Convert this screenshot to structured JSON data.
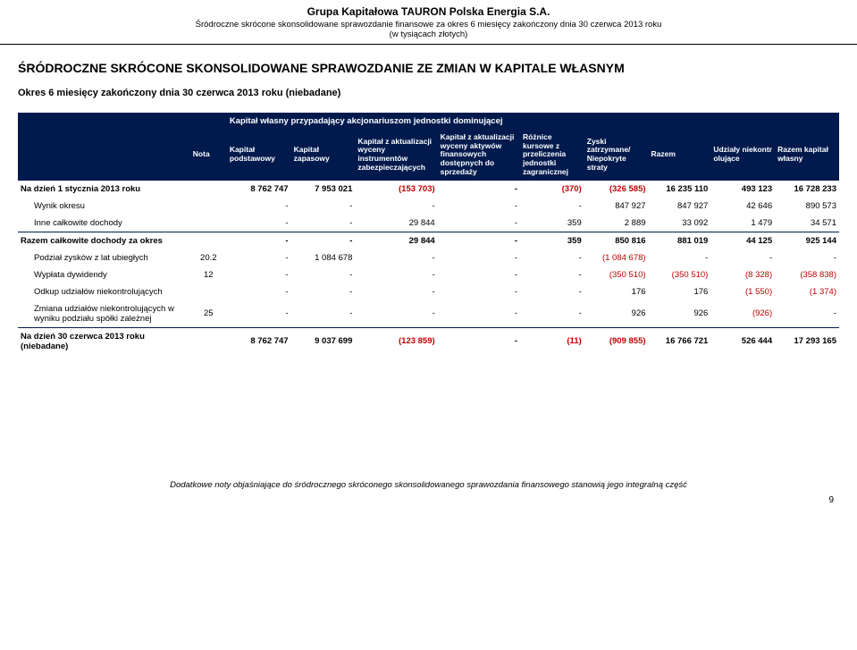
{
  "header": {
    "company": "Grupa Kapitałowa TAURON Polska Energia S.A.",
    "sub1": "Śródroczne skrócone skonsolidowane sprawozdanie finansowe za okres 6 miesięcy zakończony dnia 30 czerwca 2013 roku",
    "sub2": "(w tysiącach złotych)"
  },
  "title": "ŚRÓDROCZNE SKRÓCONE SKONSOLIDOWANE SPRAWOZDANIE ZE ZMIAN W KAPITALE WŁASNYM",
  "period": "Okres 6 miesięcy zakończony dnia 30 czerwca 2013 roku (niebadane)",
  "band": "Kapitał własny przypadający akcjonariuszom jednostki dominującej",
  "columns": {
    "nota": "Nota",
    "c1": "Kapitał podstawowy",
    "c2": "Kapitał zapasowy",
    "c3": "Kapitał z aktualizacji wyceny instrumentów zabezpieczających",
    "c4": "Kapitał z aktualizacji wyceny aktywów finansowych dostępnych do sprzedaży",
    "c5": "Różnice kursowe z przeliczenia jednostki zagranicznej",
    "c6": "Zyski zatrzymane/ Niepokryte straty",
    "c7": "Razem",
    "c8": "Udziały niekontr olujące",
    "c9": "Razem kapitał własny"
  },
  "rows": [
    {
      "label": "Na dzień 1 stycznia 2013 roku",
      "nota": "",
      "bold": true,
      "sep": false,
      "indent": 0,
      "v": [
        "8 762 747",
        "7 953 021",
        "(153 703)",
        "-",
        "(370)",
        "(326 585)",
        "16 235 110",
        "493 123",
        "16 728 233"
      ]
    },
    {
      "label": "Wynik okresu",
      "nota": "",
      "bold": false,
      "sep": false,
      "indent": 1,
      "v": [
        "-",
        "-",
        "-",
        "-",
        "-",
        "847 927",
        "847 927",
        "42 646",
        "890 573"
      ]
    },
    {
      "label": "Inne całkowite dochody",
      "nota": "",
      "bold": false,
      "sep": false,
      "indent": 1,
      "v": [
        "-",
        "-",
        "29 844",
        "-",
        "359",
        "2 889",
        "33 092",
        "1 479",
        "34 571"
      ]
    },
    {
      "label": "Razem całkowite dochody za okres",
      "nota": "",
      "bold": true,
      "sep": true,
      "indent": 0,
      "v": [
        "-",
        "-",
        "29 844",
        "-",
        "359",
        "850 816",
        "881 019",
        "44 125",
        "925 144"
      ]
    },
    {
      "label": "Podział zysków z lat ubiegłych",
      "nota": "20.2",
      "bold": false,
      "sep": false,
      "indent": 1,
      "v": [
        "-",
        "1 084 678",
        "-",
        "-",
        "-",
        "(1 084 678)",
        "-",
        "-",
        "-"
      ]
    },
    {
      "label": "Wypłata dywidendy",
      "nota": "12",
      "bold": false,
      "sep": false,
      "indent": 1,
      "v": [
        "-",
        "-",
        "-",
        "-",
        "-",
        "(350 510)",
        "(350 510)",
        "(8 328)",
        "(358 838)"
      ]
    },
    {
      "label": "Odkup udziałów niekontrolujących",
      "nota": "",
      "bold": false,
      "sep": false,
      "indent": 1,
      "v": [
        "-",
        "-",
        "-",
        "-",
        "-",
        "176",
        "176",
        "(1 550)",
        "(1 374)"
      ]
    },
    {
      "label": "Zmiana udziałów niekontrolujących w wyniku podziału spółki zależnej",
      "nota": "25",
      "bold": false,
      "sep": false,
      "indent": 1,
      "v": [
        "-",
        "-",
        "-",
        "-",
        "-",
        "926",
        "926",
        "(926)",
        "-"
      ]
    },
    {
      "label": "Na dzień 30 czerwca 2013 roku (niebadane)",
      "nota": "",
      "bold": true,
      "sep": true,
      "indent": 0,
      "v": [
        "8 762 747",
        "9 037 699",
        "(123 859)",
        "-",
        "(11)",
        "(909 855)",
        "16 766 721",
        "526 444",
        "17 293 165"
      ]
    }
  ],
  "colors": {
    "band_bg": "#001a4d",
    "band_fg": "#ffffff",
    "negative": "#c00000",
    "text": "#000000"
  },
  "footer": {
    "note": "Dodatkowe noty objaśniające do śródrocznego skróconego skonsolidowanego sprawozdania finansowego stanowią jego integralną część",
    "page": "9"
  }
}
